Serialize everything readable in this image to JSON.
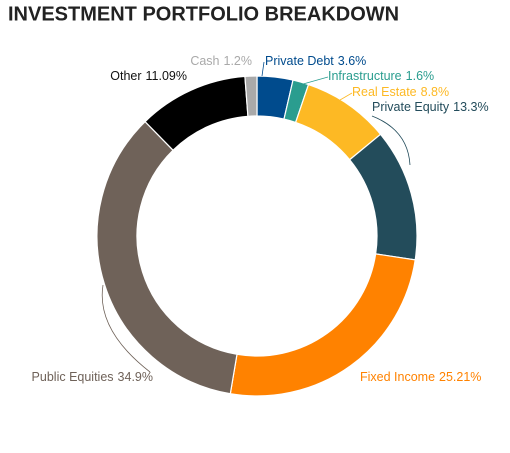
{
  "chart_data": {
    "type": "donut",
    "title": "INVESTMENT PORTFOLIO BREAKDOWN",
    "categories": [
      "Private Debt",
      "Infrastructure",
      "Real Estate",
      "Private Equity",
      "Fixed Income",
      "Public Equities",
      "Other",
      "Cash"
    ],
    "values": [
      3.6,
      1.6,
      8.8,
      13.3,
      25.21,
      34.9,
      11.09,
      1.2
    ],
    "value_labels": [
      "3.6%",
      "1.6%",
      "8.8%",
      "13.3%",
      "25.21%",
      "34.9%",
      "11.09%",
      "1.2%"
    ],
    "colors": [
      "#004b8d",
      "#2a9d8f",
      "#fdb924",
      "#234c5b",
      "#ff8200",
      "#6f6259",
      "#000000",
      "#a9a9a9"
    ]
  }
}
